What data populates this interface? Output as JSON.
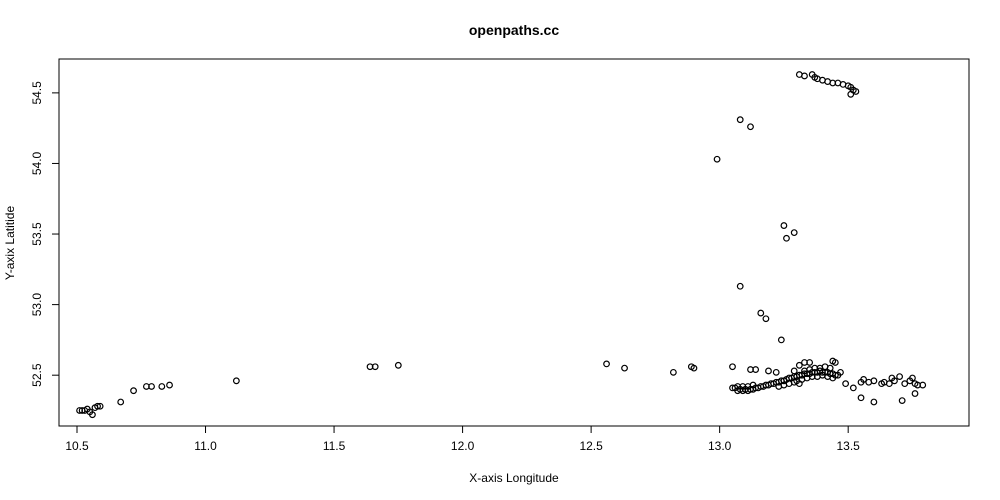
{
  "chart_data": {
    "type": "scatter",
    "title": "openpaths.cc",
    "xlabel": "X-axis Longitude",
    "ylabel": "Y-axix Latitide",
    "xlim": [
      10.43,
      13.97
    ],
    "ylim": [
      52.14,
      54.74
    ],
    "x_ticks": [
      10.5,
      11.0,
      11.5,
      12.0,
      12.5,
      13.0,
      13.5
    ],
    "x_tick_labels": [
      "10.5",
      "11.0",
      "11.5",
      "12.0",
      "12.5",
      "13.0",
      "13.5"
    ],
    "y_ticks": [
      52.5,
      53.0,
      53.5,
      54.0,
      54.5
    ],
    "y_tick_labels": [
      "52.5",
      "53.0",
      "53.5",
      "54.0",
      "54.5"
    ],
    "grid": false,
    "legend": "none",
    "marker": "open-circle",
    "colors": {
      "marker": "#000000",
      "axis": "#000000",
      "background": "#ffffff"
    },
    "points": [
      [
        10.51,
        52.25
      ],
      [
        10.52,
        52.25
      ],
      [
        10.53,
        52.25
      ],
      [
        10.54,
        52.26
      ],
      [
        10.55,
        52.24
      ],
      [
        10.56,
        52.22
      ],
      [
        10.57,
        52.27
      ],
      [
        10.58,
        52.28
      ],
      [
        10.59,
        52.28
      ],
      [
        10.67,
        52.31
      ],
      [
        10.72,
        52.39
      ],
      [
        10.77,
        52.42
      ],
      [
        10.79,
        52.42
      ],
      [
        10.83,
        52.42
      ],
      [
        10.86,
        52.43
      ],
      [
        11.12,
        52.46
      ],
      [
        11.64,
        52.56
      ],
      [
        11.66,
        52.56
      ],
      [
        11.75,
        52.57
      ],
      [
        12.56,
        52.58
      ],
      [
        12.63,
        52.55
      ],
      [
        12.82,
        52.52
      ],
      [
        12.89,
        52.56
      ],
      [
        12.9,
        52.55
      ],
      [
        12.99,
        54.03
      ],
      [
        13.08,
        54.31
      ],
      [
        13.12,
        54.26
      ],
      [
        13.25,
        53.56
      ],
      [
        13.26,
        53.47
      ],
      [
        13.29,
        53.51
      ],
      [
        13.08,
        53.13
      ],
      [
        13.16,
        52.94
      ],
      [
        13.18,
        52.9
      ],
      [
        13.24,
        52.75
      ],
      [
        13.31,
        54.63
      ],
      [
        13.33,
        54.62
      ],
      [
        13.36,
        54.63
      ],
      [
        13.37,
        54.61
      ],
      [
        13.38,
        54.6
      ],
      [
        13.4,
        54.59
      ],
      [
        13.42,
        54.58
      ],
      [
        13.44,
        54.57
      ],
      [
        13.46,
        54.57
      ],
      [
        13.48,
        54.56
      ],
      [
        13.5,
        54.55
      ],
      [
        13.51,
        54.54
      ],
      [
        13.52,
        54.52
      ],
      [
        13.53,
        54.51
      ],
      [
        13.51,
        54.49
      ],
      [
        13.05,
        52.56
      ],
      [
        13.12,
        52.54
      ],
      [
        13.14,
        52.54
      ],
      [
        13.19,
        52.53
      ],
      [
        13.22,
        52.52
      ],
      [
        13.29,
        52.53
      ],
      [
        13.31,
        52.57
      ],
      [
        13.33,
        52.59
      ],
      [
        13.35,
        52.59
      ],
      [
        13.44,
        52.6
      ],
      [
        13.45,
        52.59
      ],
      [
        13.47,
        52.52
      ],
      [
        13.49,
        52.44
      ],
      [
        13.52,
        52.41
      ],
      [
        13.55,
        52.45
      ],
      [
        13.56,
        52.47
      ],
      [
        13.58,
        52.45
      ],
      [
        13.6,
        52.46
      ],
      [
        13.63,
        52.44
      ],
      [
        13.64,
        52.45
      ],
      [
        13.66,
        52.44
      ],
      [
        13.67,
        52.48
      ],
      [
        13.68,
        52.46
      ],
      [
        13.7,
        52.49
      ],
      [
        13.72,
        52.44
      ],
      [
        13.74,
        52.46
      ],
      [
        13.75,
        52.48
      ],
      [
        13.76,
        52.44
      ],
      [
        13.77,
        52.43
      ],
      [
        13.76,
        52.37
      ],
      [
        13.79,
        52.43
      ],
      [
        13.55,
        52.34
      ],
      [
        13.6,
        52.31
      ],
      [
        13.71,
        52.32
      ],
      [
        13.06,
        52.41
      ],
      [
        13.07,
        52.39
      ],
      [
        13.08,
        52.4
      ],
      [
        13.09,
        52.39
      ],
      [
        13.1,
        52.4
      ],
      [
        13.11,
        52.39
      ],
      [
        13.12,
        52.4
      ],
      [
        13.13,
        52.4
      ],
      [
        13.14,
        52.41
      ],
      [
        13.15,
        52.41
      ],
      [
        13.16,
        52.42
      ],
      [
        13.17,
        52.42
      ],
      [
        13.18,
        52.43
      ],
      [
        13.19,
        52.43
      ],
      [
        13.2,
        52.44
      ],
      [
        13.21,
        52.44
      ],
      [
        13.22,
        52.45
      ],
      [
        13.23,
        52.45
      ],
      [
        13.24,
        52.46
      ],
      [
        13.25,
        52.46
      ],
      [
        13.26,
        52.47
      ],
      [
        13.27,
        52.48
      ],
      [
        13.28,
        52.48
      ],
      [
        13.29,
        52.49
      ],
      [
        13.3,
        52.49
      ],
      [
        13.31,
        52.5
      ],
      [
        13.32,
        52.5
      ],
      [
        13.33,
        52.51
      ],
      [
        13.34,
        52.51
      ],
      [
        13.35,
        52.51
      ],
      [
        13.36,
        52.52
      ],
      [
        13.37,
        52.52
      ],
      [
        13.38,
        52.52
      ],
      [
        13.39,
        52.53
      ],
      [
        13.4,
        52.52
      ],
      [
        13.41,
        52.52
      ],
      [
        13.42,
        52.52
      ],
      [
        13.43,
        52.51
      ],
      [
        13.44,
        52.51
      ],
      [
        13.45,
        52.5
      ],
      [
        13.46,
        52.5
      ],
      [
        13.3,
        52.46
      ],
      [
        13.32,
        52.47
      ],
      [
        13.34,
        52.48
      ],
      [
        13.36,
        52.49
      ],
      [
        13.38,
        52.49
      ],
      [
        13.4,
        52.5
      ],
      [
        13.42,
        52.49
      ],
      [
        13.44,
        52.48
      ],
      [
        13.35,
        52.54
      ],
      [
        13.37,
        52.55
      ],
      [
        13.39,
        52.55
      ],
      [
        13.41,
        52.56
      ],
      [
        13.43,
        52.55
      ],
      [
        13.33,
        52.53
      ],
      [
        13.27,
        52.44
      ],
      [
        13.29,
        52.45
      ],
      [
        13.31,
        52.44
      ],
      [
        13.25,
        52.43
      ],
      [
        13.23,
        52.42
      ],
      [
        13.07,
        52.42
      ],
      [
        13.05,
        52.41
      ],
      [
        13.09,
        52.42
      ],
      [
        13.11,
        52.42
      ],
      [
        13.13,
        52.43
      ]
    ]
  }
}
